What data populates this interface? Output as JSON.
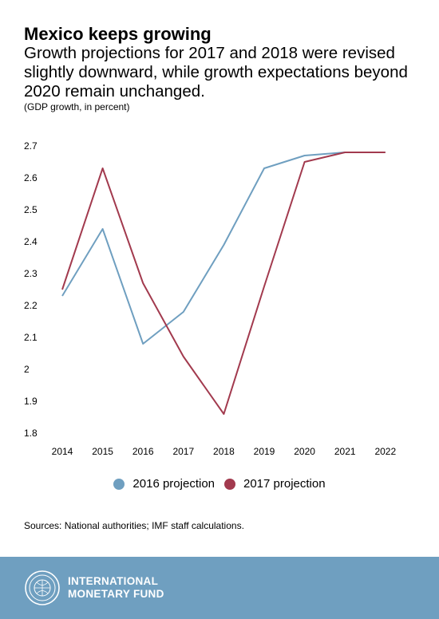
{
  "header": {
    "title": "Mexico keeps growing",
    "subtitle": "Growth projections for 2017 and 2018 were revised slightly downward, while growth expectations beyond 2020 remain unchanged.",
    "unit": "(GDP growth, in percent)"
  },
  "chart_data": {
    "type": "line",
    "x": [
      "2014",
      "2015",
      "2016",
      "2017",
      "2018",
      "2019",
      "2020",
      "2021",
      "2022"
    ],
    "yticks": [
      "1.8",
      "1.9",
      "2",
      "2.1",
      "2.2",
      "2.3",
      "2.4",
      "2.5",
      "2.6",
      "2.7"
    ],
    "ylim": [
      1.8,
      2.7
    ],
    "series": [
      {
        "name": "2016 projection",
        "color": "#6f9fc0",
        "values": [
          2.23,
          2.44,
          2.08,
          2.18,
          2.39,
          2.63,
          2.67,
          2.68,
          2.68
        ]
      },
      {
        "name": "2017 projection",
        "color": "#a23a4e",
        "values": [
          2.25,
          2.63,
          2.27,
          2.04,
          1.86,
          2.26,
          2.65,
          2.68,
          2.68
        ]
      }
    ],
    "grid": false,
    "legend": "bottom"
  },
  "legend": {
    "items": [
      {
        "label": "2016 projection",
        "color": "#6f9fc0"
      },
      {
        "label": "2017 projection",
        "color": "#a23a4e"
      }
    ]
  },
  "source": "Sources: National authorities; IMF staff calculations.",
  "footer": {
    "line1": "INTERNATIONAL",
    "line2": "MONETARY FUND",
    "logo_icon": "imf-seal-icon"
  }
}
